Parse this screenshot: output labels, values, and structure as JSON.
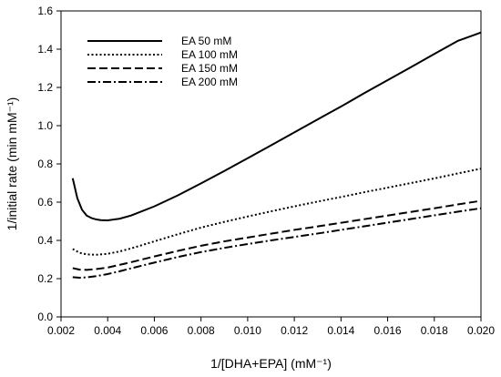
{
  "chart_data": {
    "type": "line",
    "title": "",
    "xlabel": "1/[DHA+EPA] (mM⁻¹)",
    "ylabel": "1/initial rate (min mM⁻¹)",
    "xlim": [
      0.002,
      0.02
    ],
    "ylim": [
      0.0,
      1.6
    ],
    "xticks": [
      0.002,
      0.004,
      0.006,
      0.008,
      0.01,
      0.012,
      0.014,
      0.016,
      0.018,
      0.02
    ],
    "xtick_labels": [
      "0.002",
      "0.004",
      "0.006",
      "0.008",
      "0.010",
      "0.012",
      "0.014",
      "0.016",
      "0.018",
      "0.020"
    ],
    "yticks": [
      0.0,
      0.2,
      0.4,
      0.6,
      0.8,
      1.0,
      1.2,
      1.4,
      1.6
    ],
    "ytick_labels": [
      "0.0",
      "0.2",
      "0.4",
      "0.6",
      "0.8",
      "1.0",
      "1.2",
      "1.4",
      "1.6"
    ],
    "grid": false,
    "legend_position": "top-left",
    "series": [
      {
        "name": "EA 50 mM",
        "style": "solid",
        "x": [
          0.0025,
          0.0027,
          0.0029,
          0.0031,
          0.0033,
          0.0035,
          0.0037,
          0.004,
          0.0045,
          0.005,
          0.006,
          0.007,
          0.008,
          0.009,
          0.01,
          0.011,
          0.012,
          0.013,
          0.014,
          0.015,
          0.016,
          0.017,
          0.018,
          0.019,
          0.02
        ],
        "y": [
          0.725,
          0.62,
          0.56,
          0.53,
          0.517,
          0.51,
          0.506,
          0.505,
          0.513,
          0.53,
          0.578,
          0.635,
          0.698,
          0.763,
          0.83,
          0.897,
          0.965,
          1.033,
          1.1,
          1.17,
          1.238,
          1.306,
          1.375,
          1.443,
          1.487
        ]
      },
      {
        "name": "EA 100 mM",
        "style": "dotted",
        "x": [
          0.0025,
          0.0028,
          0.0031,
          0.0035,
          0.004,
          0.0045,
          0.005,
          0.006,
          0.007,
          0.008,
          0.009,
          0.01,
          0.011,
          0.012,
          0.013,
          0.014,
          0.015,
          0.016,
          0.017,
          0.018,
          0.019,
          0.02
        ],
        "y": [
          0.355,
          0.335,
          0.327,
          0.325,
          0.33,
          0.342,
          0.358,
          0.395,
          0.432,
          0.467,
          0.497,
          0.525,
          0.552,
          0.578,
          0.603,
          0.627,
          0.652,
          0.676,
          0.7,
          0.724,
          0.75,
          0.775
        ]
      },
      {
        "name": "EA 150 mM",
        "style": "dashed",
        "x": [
          0.0025,
          0.0028,
          0.0031,
          0.0035,
          0.004,
          0.0045,
          0.005,
          0.006,
          0.007,
          0.008,
          0.009,
          0.01,
          0.011,
          0.012,
          0.013,
          0.014,
          0.015,
          0.016,
          0.017,
          0.018,
          0.019,
          0.02
        ],
        "y": [
          0.255,
          0.247,
          0.246,
          0.25,
          0.258,
          0.272,
          0.286,
          0.316,
          0.345,
          0.372,
          0.395,
          0.415,
          0.435,
          0.455,
          0.473,
          0.492,
          0.511,
          0.53,
          0.549,
          0.568,
          0.588,
          0.607
        ]
      },
      {
        "name": "EA 200 mM",
        "style": "dashdot",
        "x": [
          0.0025,
          0.0028,
          0.0031,
          0.0035,
          0.004,
          0.0045,
          0.005,
          0.006,
          0.007,
          0.008,
          0.009,
          0.01,
          0.011,
          0.012,
          0.013,
          0.014,
          0.015,
          0.016,
          0.017,
          0.018,
          0.019,
          0.02
        ],
        "y": [
          0.208,
          0.205,
          0.207,
          0.213,
          0.224,
          0.238,
          0.254,
          0.284,
          0.313,
          0.339,
          0.361,
          0.381,
          0.4,
          0.418,
          0.436,
          0.455,
          0.474,
          0.493,
          0.512,
          0.531,
          0.55,
          0.568
        ]
      }
    ]
  }
}
